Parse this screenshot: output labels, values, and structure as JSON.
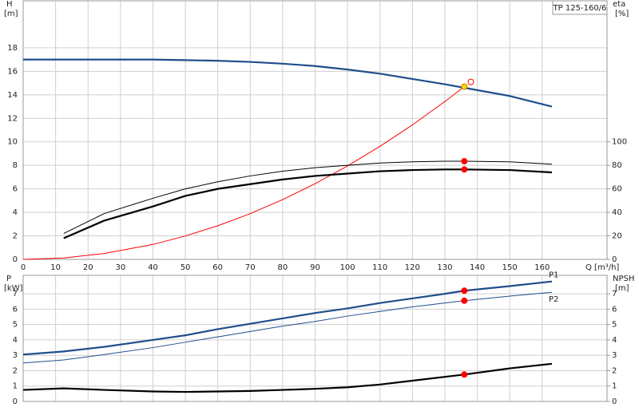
{
  "chart_data": [
    {
      "type": "line",
      "title": "TP 125-160/6",
      "ylabel": "H",
      "yunit": "[m]",
      "y2label": "eta",
      "y2unit": "[%]",
      "xlabel": "Q [m³/h]",
      "xlim": [
        0,
        180
      ],
      "xticks": [
        0,
        10,
        20,
        30,
        40,
        50,
        60,
        70,
        80,
        90,
        100,
        110,
        120,
        130,
        140,
        150,
        160
      ],
      "ylim": [
        0,
        22
      ],
      "yticks": [
        0,
        2,
        4,
        6,
        8,
        10,
        12,
        14,
        16,
        18
      ],
      "y2lim": [
        0,
        220
      ],
      "y2ticks": [
        0,
        20,
        40,
        60,
        80,
        100
      ],
      "grid": true,
      "xtick_labels": true,
      "x": [
        0,
        12.5,
        25,
        40,
        50,
        60,
        70,
        80,
        90,
        100,
        110,
        120,
        130,
        136,
        150,
        163
      ],
      "series": [
        {
          "color": "#1f4e8c",
          "style": "thick",
          "values": [
            17,
            17,
            17,
            17,
            16.95,
            16.9,
            16.8,
            16.65,
            16.45,
            16.15,
            15.8,
            15.35,
            14.9,
            14.6,
            13.9,
            13
          ]
        },
        {
          "color": "#ff0000",
          "style": "thin",
          "values": [
            0,
            0.12,
            0.5,
            1.27,
            1.99,
            2.86,
            3.89,
            5.09,
            6.44,
            7.95,
            9.62,
            11.44,
            13.43,
            14.7,
            null,
            null
          ]
        },
        {
          "color": "#000000",
          "style": "thin",
          "axis": "y2",
          "values": [
            null,
            22,
            39,
            52,
            60,
            66,
            71,
            75,
            78,
            80,
            82,
            83,
            83.5,
            83.5,
            83,
            81
          ]
        },
        {
          "color": "#000000",
          "style": "thick",
          "axis": "y2",
          "values": [
            null,
            18,
            33,
            45,
            54,
            60,
            64,
            68,
            71,
            73,
            75,
            76,
            76.5,
            76.5,
            76,
            74
          ]
        }
      ],
      "points": [
        {
          "x": 136,
          "y": 14.7,
          "color": "#ffd700"
        },
        {
          "x": 138,
          "y": 15.1,
          "color": "none"
        },
        {
          "x": 136,
          "y": 83.5,
          "axis": "y2",
          "color": "#ff0000"
        },
        {
          "x": 136,
          "y": 76.5,
          "axis": "y2",
          "color": "#ff0000"
        }
      ]
    },
    {
      "type": "line",
      "ylabel": "P",
      "yunit": "[kW]",
      "y2label": "NPSH",
      "y2unit": "[m]",
      "xlim": [
        0,
        180
      ],
      "xticks": [
        0,
        10,
        20,
        30,
        40,
        50,
        60,
        70,
        80,
        90,
        100,
        110,
        120,
        130,
        140,
        150,
        160
      ],
      "ylim": [
        0,
        8.2
      ],
      "yticks": [
        0,
        1,
        2,
        3,
        4,
        5,
        6,
        7
      ],
      "y2lim": [
        0,
        8.2
      ],
      "y2ticks": [
        0,
        1,
        2,
        3,
        4,
        5,
        6,
        7
      ],
      "grid": true,
      "xtick_labels": false,
      "x": [
        0,
        12.5,
        25,
        40,
        50,
        60,
        70,
        80,
        90,
        100,
        110,
        120,
        130,
        136,
        150,
        163
      ],
      "series": [
        {
          "name": "P1",
          "color": "#1f4e8c",
          "style": "thick",
          "values": [
            3.05,
            3.25,
            3.55,
            4.0,
            4.3,
            4.7,
            5.05,
            5.4,
            5.75,
            6.05,
            6.4,
            6.7,
            7.0,
            7.2,
            7.5,
            7.8
          ]
        },
        {
          "name": "P2",
          "color": "#1f4e8c",
          "style": "thin",
          "values": [
            2.5,
            2.7,
            3.05,
            3.5,
            3.85,
            4.2,
            4.55,
            4.9,
            5.2,
            5.55,
            5.85,
            6.15,
            6.4,
            6.55,
            6.85,
            7.1
          ]
        },
        {
          "color": "#000000",
          "style": "thick",
          "axis": "y2",
          "values": [
            0.75,
            0.85,
            0.75,
            0.65,
            0.62,
            0.65,
            0.68,
            0.75,
            0.82,
            0.92,
            1.1,
            1.35,
            1.6,
            1.75,
            2.15,
            2.45
          ]
        }
      ],
      "points": [
        {
          "x": 136,
          "y": 7.2,
          "color": "#ff0000"
        },
        {
          "x": 136,
          "y": 6.55,
          "color": "#ff0000"
        },
        {
          "x": 136,
          "y": 1.75,
          "axis": "y2",
          "color": "#ff0000"
        }
      ]
    }
  ]
}
